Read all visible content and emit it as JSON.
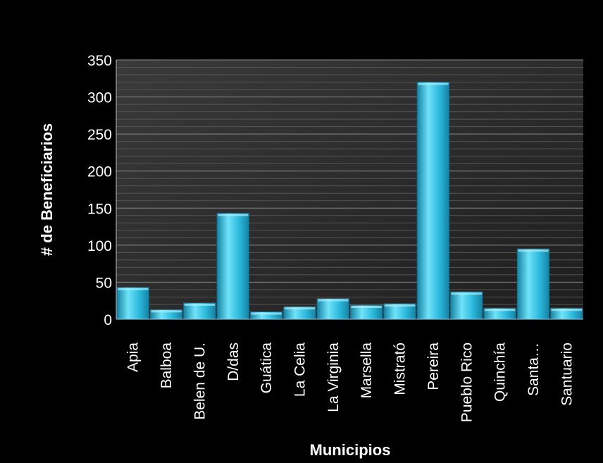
{
  "chart_data": {
    "type": "bar",
    "title": "",
    "xlabel": "Municipios",
    "ylabel": "# de Beneficiarios",
    "ylim": [
      0,
      350
    ],
    "yticks": [
      0,
      50,
      100,
      150,
      200,
      250,
      300,
      350
    ],
    "grid": true,
    "legend": "none",
    "categories": [
      "Apia",
      "Balboa",
      "Belen de U.",
      "D/das",
      "Guática",
      "La Celia",
      "La Virginia",
      "Marsella",
      "Mistrató",
      "Pereira",
      "Pueblo Rico",
      "Quinchía",
      "Santa…",
      "Santuario"
    ],
    "values": [
      43,
      13,
      22,
      143,
      10,
      17,
      28,
      19,
      21,
      320,
      37,
      15,
      95,
      15
    ]
  },
  "colors": {
    "background": "#000000",
    "plot_background": "#2b2b2b",
    "bar_light": "#6fe3f8",
    "bar_mid": "#2bb8dc",
    "bar_dark": "#1682a4",
    "text": "#ffffff"
  }
}
